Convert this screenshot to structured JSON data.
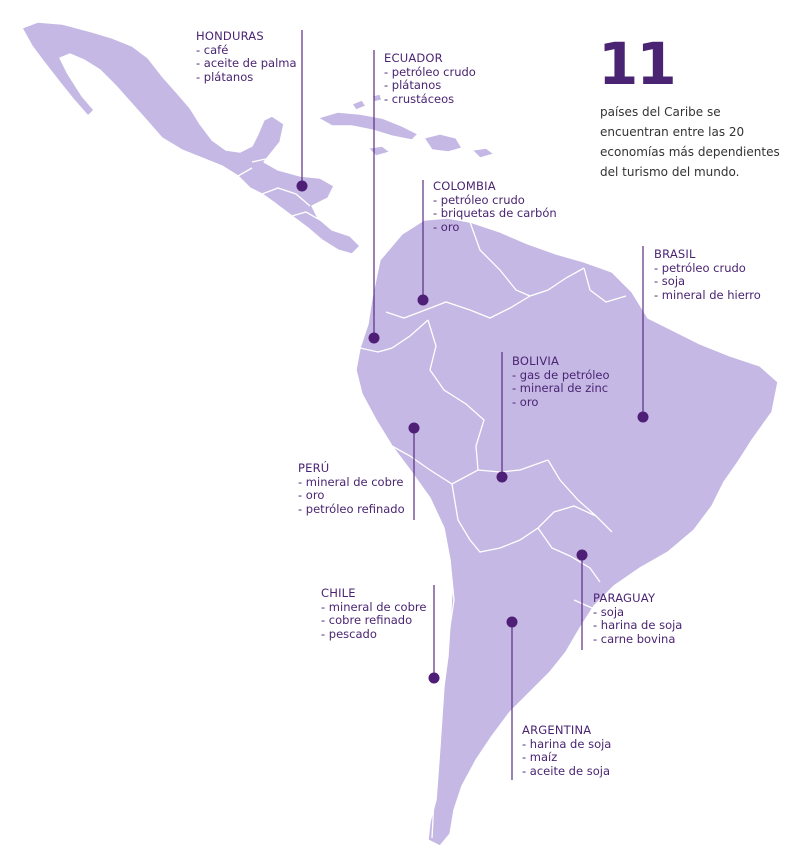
{
  "colors": {
    "land": "#c5b8e4",
    "border": "#ffffff",
    "accent": "#4a2472",
    "dot": "#4f1f78",
    "stat_text": "#333333"
  },
  "stat": {
    "number": "11",
    "text": "países del Caribe se encuentran entre las 20 economías más dependientes del turismo del mundo."
  },
  "countries": [
    {
      "id": "honduras",
      "name": "HONDURAS",
      "items": [
        "- café",
        "- aceite de palma",
        "- plátanos"
      ]
    },
    {
      "id": "ecuador",
      "name": "ECUADOR",
      "items": [
        "- petróleo crudo",
        "- plátanos",
        "- crustáceos"
      ]
    },
    {
      "id": "colombia",
      "name": "COLOMBIA",
      "items": [
        "- petróleo crudo",
        "- briquetas de carbón",
        "- oro"
      ]
    },
    {
      "id": "brasil",
      "name": "BRASIL",
      "items": [
        "- petróleo crudo",
        "- soja",
        "- mineral de hierro"
      ]
    },
    {
      "id": "bolivia",
      "name": "BOLIVIA",
      "items": [
        "- gas de petróleo",
        "- mineral de zinc",
        "- oro"
      ]
    },
    {
      "id": "peru",
      "name": "PERÚ",
      "items": [
        "- mineral de cobre",
        "- oro",
        "- petróleo refinado"
      ]
    },
    {
      "id": "chile",
      "name": "CHILE",
      "items": [
        "- mineral de cobre",
        "- cobre refinado",
        "- pescado"
      ]
    },
    {
      "id": "paraguay",
      "name": "PARAGUAY",
      "items": [
        "- soja",
        "- harina de soja",
        "- carne bovina"
      ]
    },
    {
      "id": "argentina",
      "name": "ARGENTINA",
      "items": [
        "- harina de soja",
        "- maíz",
        "- aceite de soja"
      ]
    }
  ]
}
